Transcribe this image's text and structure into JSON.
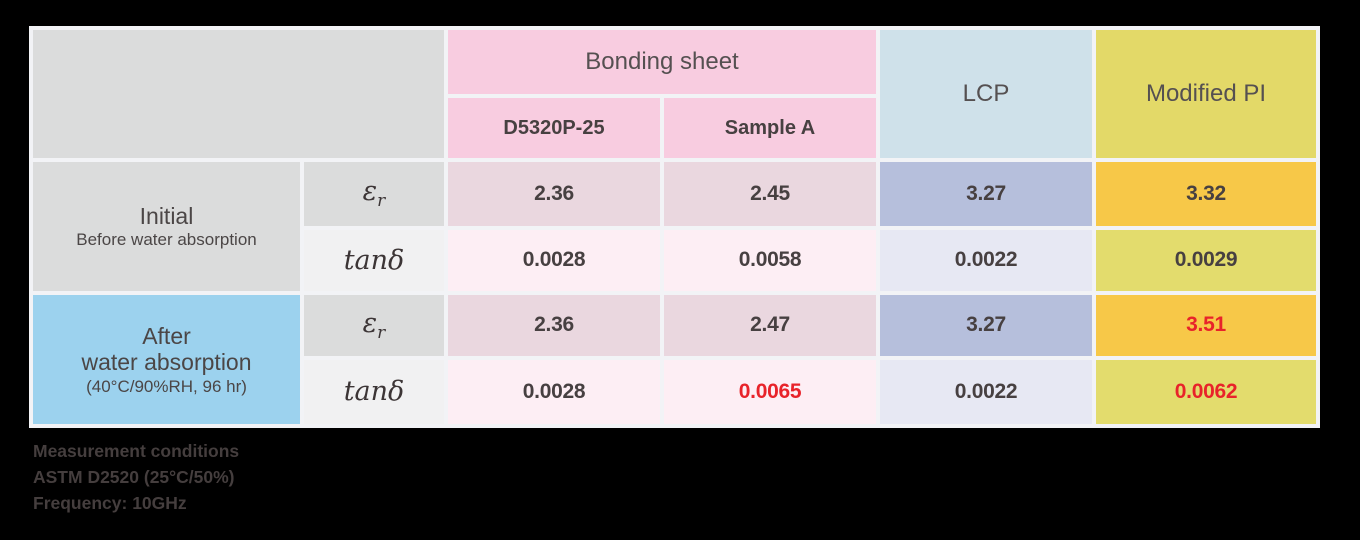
{
  "colors": {
    "background": "#000000",
    "table_grid_lines": "#f2f3f6",
    "header_pink": "#f8cce0",
    "header_light_blue": "#cfe1ea",
    "header_yellow": "#e3d968",
    "cell_mauve_pink": "#ead7df",
    "cell_pale_pink": "#fdeef4",
    "cell_blue_purple": "#b6bfdc",
    "cell_lavender": "#e7e8f3",
    "cell_orange_yellow": "#f7c848",
    "cell_olive_yellow": "#e3dc6d",
    "cell_gray": "#dbdcdc",
    "cell_gray_light": "#f1f1f2",
    "row_header_sky_blue": "#9cd2ee",
    "text_dark": "#474041",
    "text_red": "#e8232a"
  },
  "table": {
    "col_groups": {
      "bonding_sheet": "Bonding sheet",
      "lcp": "LCP",
      "modified_pi": "Modified PI"
    },
    "sub_headers": {
      "d5320p25": "D5320P-25",
      "sample_a": "Sample A"
    },
    "row_groups": {
      "initial": {
        "title": "Initial",
        "subtitle": "Before water absorption"
      },
      "after": {
        "title_line1": "After",
        "title_line2": "water absorption",
        "subtitle": "(40°C/90%RH, 96 hr)"
      }
    },
    "params": {
      "epsilon_base": "ε",
      "epsilon_sub": "r",
      "tand": "tanδ"
    },
    "rows": [
      {
        "name": "initial_er",
        "values": [
          "2.36",
          "2.45",
          "3.27",
          "3.32"
        ]
      },
      {
        "name": "initial_tand",
        "values": [
          "0.0028",
          "0.0058",
          "0.0022",
          "0.0029"
        ]
      },
      {
        "name": "after_er",
        "values": [
          "2.36",
          "2.47",
          "3.27",
          "3.51"
        ]
      },
      {
        "name": "after_tand",
        "values": [
          "0.0028",
          "0.0065",
          "0.0022",
          "0.0062"
        ]
      }
    ]
  },
  "footnote": {
    "line1": "Measurement conditions",
    "line2": "ASTM D2520 (25°C/50%)",
    "line3": "Frequency: 10GHz"
  },
  "chart_data": {
    "type": "table",
    "title": "Dielectric properties before and after water absorption",
    "columns": [
      "D5320P-25",
      "Sample A",
      "LCP",
      "Modified PI"
    ],
    "column_groups": [
      {
        "label": "Bonding sheet",
        "columns": [
          "D5320P-25",
          "Sample A"
        ]
      }
    ],
    "rows": [
      {
        "condition": "Initial (Before water absorption)",
        "parameter": "εr",
        "values": [
          2.36,
          2.45,
          3.27,
          3.32
        ],
        "highlighted_red": []
      },
      {
        "condition": "Initial (Before water absorption)",
        "parameter": "tanδ",
        "values": [
          0.0028,
          0.0058,
          0.0022,
          0.0029
        ],
        "highlighted_red": []
      },
      {
        "condition": "After water absorption (40°C/90%RH, 96 hr)",
        "parameter": "εr",
        "values": [
          2.36,
          2.47,
          3.27,
          3.51
        ],
        "highlighted_red": [
          3.51
        ]
      },
      {
        "condition": "After water absorption (40°C/90%RH, 96 hr)",
        "parameter": "tanδ",
        "values": [
          0.0028,
          0.0065,
          0.0022,
          0.0062
        ],
        "highlighted_red": [
          0.0065,
          0.0062
        ]
      }
    ],
    "notes": [
      "Measurement conditions",
      "ASTM D2520 (25°C/50%)",
      "Frequency: 10GHz"
    ]
  }
}
